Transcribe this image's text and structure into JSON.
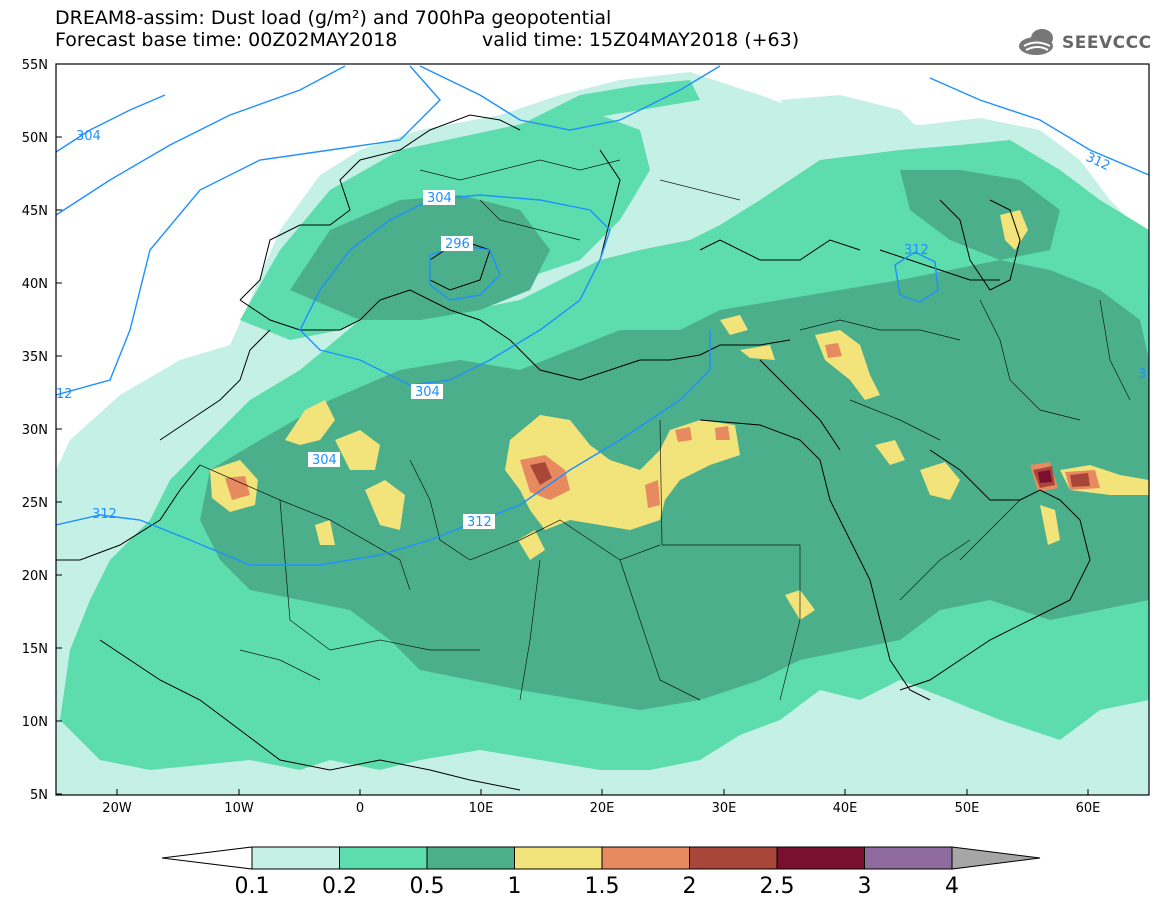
{
  "header": {
    "title": "DREAM8-assim: Dust load (g/m²) and 700hPa geopotential",
    "base_time": "Forecast base time: 00Z02MAY2018",
    "valid_time": "valid time: 15Z04MAY2018 (+63)",
    "logo_text": "SEEVCCC"
  },
  "map": {
    "lat_labels": [
      "55N",
      "50N",
      "45N",
      "40N",
      "35N",
      "30N",
      "25N",
      "20N",
      "15N",
      "10N",
      "5N"
    ],
    "lon_labels": [
      "20W",
      "10W",
      "0",
      "10E",
      "20E",
      "30E",
      "40E",
      "50E",
      "60E"
    ],
    "contour_labels": [
      "304",
      "304",
      "296",
      "312",
      "304",
      "304",
      "312",
      "312",
      "12",
      "312",
      "3"
    ],
    "colors": {
      "c1": "#c5f0e6",
      "c2": "#5ddcad",
      "c3": "#4caf8b",
      "c4": "#f2e37a",
      "c5": "#e88a5f",
      "c6": "#a8463a",
      "c7": "#7a1030",
      "contour": "#1e90ff"
    }
  },
  "colorbar": {
    "labels": [
      "0.1",
      "0.2",
      "0.5",
      "1",
      "1.5",
      "2",
      "2.5",
      "3",
      "4"
    ],
    "colors": [
      "#c5f0e6",
      "#5ddcad",
      "#4caf8b",
      "#f2e37a",
      "#e88a5f",
      "#a8463a",
      "#7a1030",
      "#8e6a9f"
    ]
  }
}
